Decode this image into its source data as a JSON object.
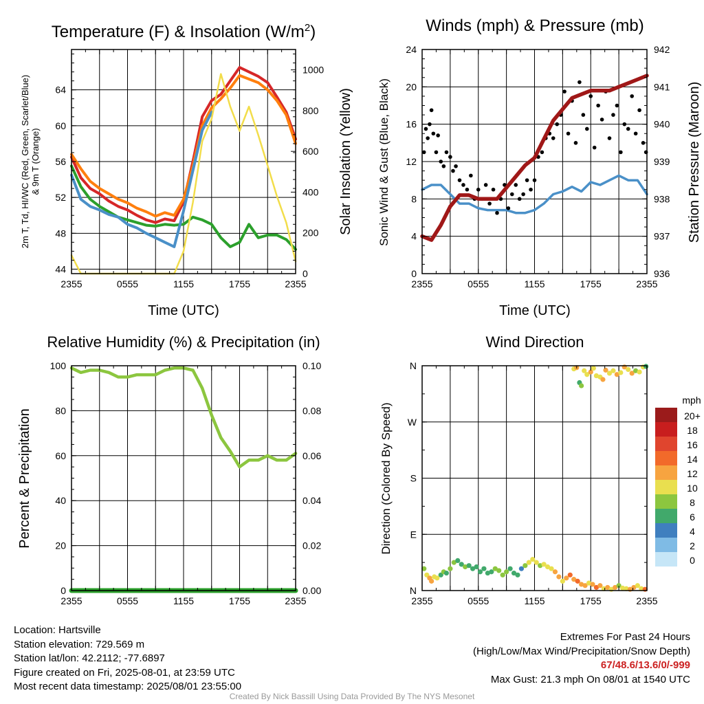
{
  "chart_data": [
    {
      "type": "line",
      "title": "Temperature (F) & Insolation (W/m²)",
      "xlabel": "Time (UTC)",
      "ylabel_lines": [
        "2m T, Td, HI/WC (Red, Green, Scarlet/Blue)",
        "& 9m T (Orange)"
      ],
      "ylabel2": "Solar Insolation (Yellow)",
      "x_tick_labels": [
        "2355",
        "0555",
        "1155",
        "1755",
        "2355"
      ],
      "ylim": [
        43.5,
        68.5
      ],
      "y_ticks": [
        44,
        48,
        52,
        56,
        60,
        64
      ],
      "y2lim": [
        0,
        1100
      ],
      "y2_ticks": [
        0,
        200,
        400,
        600,
        800,
        1000
      ],
      "grid": true,
      "x_hours": [
        0,
        1,
        2,
        3,
        4,
        5,
        6,
        7,
        8,
        9,
        10,
        11,
        12,
        13,
        14,
        15,
        16,
        17,
        18,
        19,
        20,
        21,
        22,
        23,
        24
      ],
      "series": [
        {
          "key": "t2m",
          "color": "#d62728",
          "axis": "left",
          "values": [
            56.5,
            54.2,
            53.0,
            52.4,
            51.6,
            51.0,
            50.6,
            50.0,
            49.5,
            49.2,
            49.6,
            49.4,
            51.5,
            56.0,
            61.0,
            62.8,
            63.5,
            65.0,
            66.5,
            66.0,
            65.5,
            64.8,
            63.2,
            61.5,
            58.5
          ]
        },
        {
          "key": "t9m",
          "color": "#ff7f0e",
          "axis": "left",
          "values": [
            56.8,
            55.2,
            53.8,
            53.0,
            52.4,
            51.8,
            51.4,
            50.8,
            50.4,
            49.9,
            50.3,
            50.0,
            51.8,
            55.5,
            60.0,
            62.0,
            63.0,
            64.2,
            65.6,
            65.2,
            64.8,
            64.0,
            62.8,
            61.2,
            58.0
          ]
        },
        {
          "key": "td",
          "color": "#2ca02c",
          "axis": "left",
          "values": [
            55.5,
            53.2,
            51.8,
            51.0,
            50.4,
            49.8,
            49.5,
            49.2,
            48.9,
            48.8,
            49.0,
            48.9,
            49.0,
            49.8,
            49.5,
            49.0,
            47.5,
            46.5,
            47.0,
            49.0,
            47.5,
            47.8,
            47.8,
            47.3,
            46.2
          ]
        },
        {
          "key": "hiwc",
          "color": "#4a90c8",
          "axis": "left",
          "values": [
            54.5,
            51.8,
            51.0,
            50.6,
            50.1,
            49.8,
            49.0,
            48.6,
            48.0,
            47.5,
            47.0,
            46.5,
            50.5,
            55.0,
            59.5,
            61.5
          ]
        },
        {
          "key": "solar",
          "color": "#f2dd4b",
          "axis": "right",
          "values": [
            90,
            0,
            0,
            0,
            0,
            0,
            0,
            0,
            0,
            0,
            0,
            0,
            110,
            350,
            650,
            760,
            980,
            820,
            700,
            820,
            680,
            530,
            380,
            250,
            60
          ]
        }
      ]
    },
    {
      "type": "line",
      "title": "Winds (mph) & Pressure (mb)",
      "xlabel": "Time (UTC)",
      "ylabel": "Sonic Wind & Gust (Blue, Black)",
      "ylabel2": "Station Pressure (Maroon)",
      "x_tick_labels": [
        "2355",
        "0555",
        "1155",
        "1755",
        "2355"
      ],
      "ylim": [
        0,
        24
      ],
      "y_ticks": [
        0,
        4,
        8,
        12,
        16,
        20,
        24
      ],
      "y2lim": [
        936,
        942
      ],
      "y2_ticks": [
        936,
        937,
        938,
        939,
        940,
        941,
        942
      ],
      "grid": true,
      "x_hours": [
        0,
        1,
        2,
        3,
        4,
        5,
        6,
        7,
        8,
        9,
        10,
        11,
        12,
        13,
        14,
        15,
        16,
        17,
        18,
        19,
        20,
        21,
        22,
        23,
        24
      ],
      "series": [
        {
          "key": "wind",
          "color": "#4a90c8",
          "axis": "left",
          "values": [
            9.0,
            9.5,
            9.5,
            8.5,
            7.5,
            7.5,
            7.0,
            6.8,
            6.8,
            6.8,
            6.5,
            6.5,
            6.8,
            7.5,
            8.5,
            8.8,
            9.3,
            8.8,
            9.8,
            9.5,
            10.0,
            10.5,
            10.0,
            10.0,
            8.5
          ]
        },
        {
          "key": "pressure",
          "color": "#a01818",
          "axis": "right",
          "values": [
            937.0,
            936.9,
            937.3,
            937.8,
            938.1,
            938.1,
            938.0,
            938.0,
            938.0,
            938.3,
            938.6,
            938.9,
            939.1,
            939.6,
            940.1,
            940.4,
            940.7,
            940.8,
            940.9,
            940.9,
            940.9,
            941.0,
            941.1,
            941.2,
            941.3
          ]
        }
      ],
      "gust_points": {
        "color": "#000000",
        "x": [
          0.2,
          0.4,
          0.6,
          0.8,
          1.0,
          1.2,
          1.5,
          1.7,
          2.0,
          2.3,
          2.6,
          3.0,
          3.3,
          3.6,
          4.0,
          4.4,
          4.8,
          5.2,
          5.6,
          6.0,
          6.4,
          6.8,
          7.2,
          7.6,
          8.0,
          8.4,
          8.8,
          9.2,
          9.6,
          10.0,
          10.4,
          10.8,
          11.2,
          11.6,
          12.0,
          12.4,
          12.8,
          13.2,
          13.6,
          14.0,
          14.4,
          14.8,
          15.2,
          15.6,
          16.0,
          16.4,
          16.8,
          17.2,
          17.6,
          18.0,
          18.4,
          18.8,
          19.2,
          19.6,
          20.0,
          20.4,
          20.8,
          21.2,
          21.6,
          22.0,
          22.4,
          22.8,
          23.2,
          23.6,
          23.9
        ],
        "y": [
          13.0,
          15.5,
          14.5,
          16.0,
          17.5,
          15.0,
          13.0,
          14.8,
          12.0,
          11.5,
          13.0,
          12.5,
          11.0,
          11.5,
          10.0,
          9.5,
          9.0,
          10.5,
          8.0,
          9.0,
          8.0,
          9.5,
          7.5,
          9.0,
          6.5,
          8.0,
          9.5,
          7.0,
          8.5,
          9.5,
          8.0,
          8.5,
          10.0,
          9.0,
          10.0,
          12.5,
          13.0,
          14.5,
          15.0,
          14.5,
          16.0,
          17.0,
          19.5,
          15.0,
          18.5,
          14.0,
          20.5,
          17.0,
          15.5,
          19.0,
          13.5,
          18.0,
          16.5,
          19.5,
          14.5,
          17.0,
          18.0,
          13.0,
          16.0,
          15.5,
          19.0,
          15.0,
          17.5,
          14.0,
          13.0
        ]
      }
    },
    {
      "type": "line",
      "title": "Relative Humidity (%) & Precipitation (in)",
      "ylabel": "Percent & Precipitation",
      "x_tick_labels": [
        "2355",
        "0555",
        "1155",
        "1755",
        "2355"
      ],
      "ylim": [
        0,
        100
      ],
      "y_ticks": [
        0,
        20,
        40,
        60,
        80,
        100
      ],
      "y2lim": [
        0,
        0.1
      ],
      "y2_tick_labels": [
        "0.00",
        "0.02",
        "0.04",
        "0.06",
        "0.08",
        "0.10"
      ],
      "grid": true,
      "x_hours": [
        0,
        1,
        2,
        3,
        4,
        5,
        6,
        7,
        8,
        9,
        10,
        11,
        12,
        13,
        14,
        15,
        16,
        17,
        18,
        19,
        20,
        21,
        22,
        23,
        24
      ],
      "series": [
        {
          "key": "rh",
          "color": "#8cc63f",
          "axis": "left",
          "values": [
            99,
            97,
            98,
            98,
            97,
            95,
            95,
            96,
            96,
            96,
            98,
            99,
            99,
            98,
            90,
            78,
            68,
            62,
            55,
            58,
            58,
            60,
            58,
            58,
            61
          ]
        },
        {
          "key": "precip",
          "color": "#2ca02c",
          "axis": "right",
          "values": [
            0,
            0,
            0,
            0,
            0,
            0,
            0,
            0,
            0,
            0,
            0,
            0,
            0,
            0,
            0,
            0,
            0,
            0,
            0,
            0,
            0,
            0,
            0,
            0,
            0
          ]
        }
      ]
    },
    {
      "type": "scatter",
      "title": "Wind Direction",
      "ylabel": "Direction (Colored By Speed)",
      "x_tick_labels": [
        "2355",
        "0555",
        "1155",
        "1755",
        "2355"
      ],
      "y_tick_labels": [
        "N",
        "E",
        "S",
        "W",
        "N"
      ],
      "ylim": [
        0,
        360
      ],
      "grid": true,
      "points_dir": {
        "x": [
          0.2,
          0.5,
          0.8,
          1.0,
          1.3,
          1.6,
          2.0,
          2.3,
          2.6,
          3.0,
          3.4,
          3.8,
          4.2,
          4.6,
          5.0,
          5.4,
          5.8,
          6.2,
          6.6,
          7.0,
          7.4,
          7.8,
          8.2,
          8.6,
          9.0,
          9.4,
          9.8,
          10.2,
          10.6,
          11.0,
          11.4,
          11.8,
          12.2,
          12.6,
          13.0,
          13.4,
          13.8,
          14.2,
          14.6,
          15.0,
          15.4,
          15.8,
          16.2,
          16.6,
          17.0,
          17.4,
          17.8,
          18.2,
          18.6,
          19.0,
          19.4,
          19.8,
          20.2,
          20.6,
          21.0,
          21.4,
          21.8,
          22.2,
          22.6,
          23.0,
          23.4,
          23.8
        ],
        "dir": [
          35,
          25,
          20,
          15,
          22,
          20,
          25,
          30,
          28,
          35,
          45,
          48,
          42,
          38,
          40,
          35,
          38,
          30,
          35,
          28,
          30,
          35,
          32,
          25,
          30,
          35,
          28,
          25,
          35,
          40,
          45,
          50,
          45,
          40,
          42,
          38,
          35,
          30,
          22,
          15,
          20,
          25,
          18,
          15,
          10,
          8,
          12,
          10,
          5,
          8,
          3,
          5,
          2,
          5,
          8,
          4,
          3,
          2,
          5,
          8,
          3,
          2
        ],
        "speed": [
          7,
          10,
          12,
          11,
          9,
          10,
          6,
          7,
          6,
          7,
          7,
          6,
          6,
          7,
          6,
          6,
          5,
          6,
          6,
          6,
          6,
          7,
          8,
          7,
          8,
          6,
          5,
          5,
          4,
          8,
          9,
          9,
          10,
          8,
          9,
          9,
          10,
          11,
          12,
          10,
          11,
          13,
          12,
          14,
          12,
          12,
          10,
          11,
          13,
          11,
          10,
          12,
          10,
          12,
          8,
          9,
          10,
          12,
          11,
          9,
          10,
          13
        ]
      },
      "points_north": {
        "x": [
          16.2,
          16.5,
          16.8,
          17.0,
          17.3,
          17.6,
          18.0,
          18.3,
          18.6,
          19.0,
          19.3,
          19.6,
          20.0,
          20.4,
          20.8,
          21.2,
          21.6,
          22.0,
          22.4,
          22.8,
          23.2,
          23.6,
          23.9
        ],
        "dir": [
          355,
          357,
          333,
          328,
          352,
          346,
          350,
          356,
          344,
          342,
          338,
          353,
          348,
          352,
          346,
          349,
          358,
          354,
          348,
          352,
          350,
          358,
          359
        ],
        "speed": [
          10,
          12,
          6,
          7,
          10,
          9,
          11,
          10,
          9,
          10,
          12,
          11,
          9,
          10,
          11,
          9,
          12,
          10,
          11,
          8,
          10,
          9,
          6
        ]
      },
      "colorbar": {
        "title": "mph",
        "labels": [
          "20+",
          "18",
          "16",
          "14",
          "12",
          "10",
          "8",
          "6",
          "4",
          "2",
          "0"
        ],
        "colors": [
          "#9b1b1b",
          "#c81e1e",
          "#e0452e",
          "#f26a2a",
          "#f7a440",
          "#e9df4f",
          "#8cc63f",
          "#41a96b",
          "#3f7fbf",
          "#7fbbe5",
          "#c6e6f7"
        ]
      }
    }
  ],
  "info_left": [
    "Location: Hartsville",
    "Station elevation: 729.569 m",
    "Station lat/lon: 42.2112; -77.6897",
    "Figure created on Fri, 2025-08-01, at 23:59 UTC",
    "Most recent data timestamp: 2025/08/01 23:55:00"
  ],
  "extremes": {
    "title": "Extremes For Past 24 Hours",
    "subtitle": "(High/Low/Max Wind/Precipitation/Snow Depth)",
    "values": "67/48.6/13.6/0/-999",
    "max_gust": "Max Gust: 21.3 mph On 08/01 at 1540 UTC"
  },
  "credit": "Created By Nick Bassill Using Data Provided By The NYS Mesonet"
}
